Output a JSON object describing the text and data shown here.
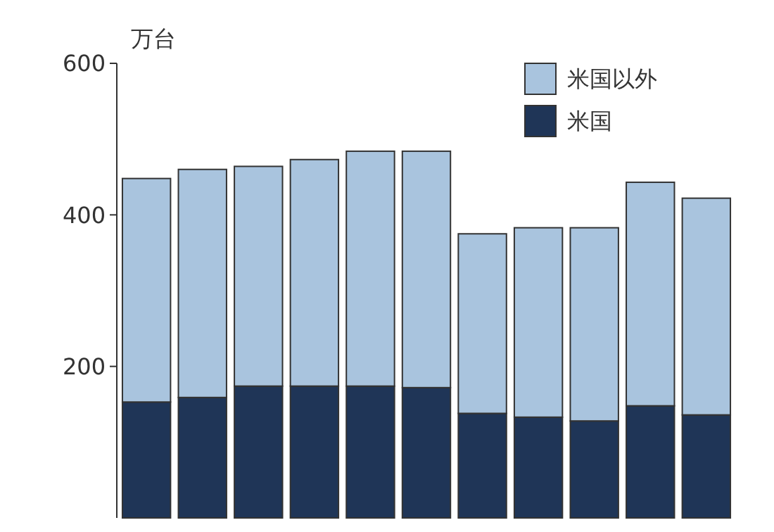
{
  "chart_data": {
    "type": "bar",
    "ylabel": "万台",
    "stacked": true,
    "legend": "top right",
    "categories": [
      null,
      null,
      null,
      null,
      null,
      null,
      null,
      null,
      null,
      null,
      null
    ],
    "series": [
      {
        "name": "米国",
        "color": "#1f3557",
        "values": [
          153,
          159,
          174,
          174,
          174,
          172,
          138,
          133,
          128,
          148,
          136
        ]
      },
      {
        "name": "米国以外",
        "color": "#a9c4de",
        "values": [
          295,
          301,
          290,
          299,
          310,
          312,
          237,
          250,
          255,
          295,
          286
        ]
      }
    ],
    "ylim": [
      0,
      600
    ],
    "yticks": [
      200,
      400,
      600
    ]
  }
}
